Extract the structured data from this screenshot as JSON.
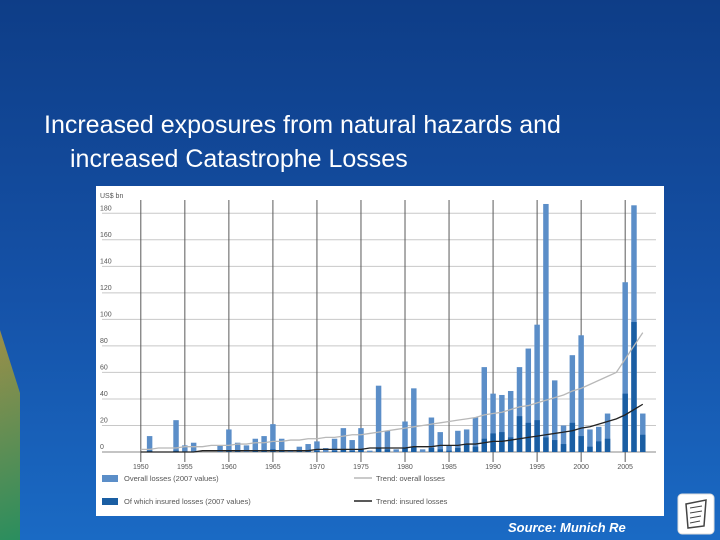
{
  "slide": {
    "title_line1": "Increased exposures from natural hazards and",
    "title_line2": "increased Catastrophe Losses",
    "source": "Source: Munich Re"
  },
  "chart_data": {
    "type": "bar",
    "ylabel": "US$ bn",
    "ylim": [
      0,
      190
    ],
    "yticks": [
      0,
      20,
      40,
      60,
      80,
      100,
      120,
      140,
      160,
      180
    ],
    "xticks": [
      "1950",
      "1955",
      "1960",
      "1965",
      "1970",
      "1975",
      "1980",
      "1985",
      "1990",
      "1995",
      "2000",
      "2005"
    ],
    "grid": true,
    "legend_position": "bottom",
    "colors": {
      "overall": "#5b8ec8",
      "insured": "#1a5ea3",
      "trend_overall": "#b8b8b8",
      "trend_insured": "#222222"
    },
    "years": [
      1950,
      1951,
      1952,
      1953,
      1954,
      1955,
      1956,
      1957,
      1958,
      1959,
      1960,
      1961,
      1962,
      1963,
      1964,
      1965,
      1966,
      1967,
      1968,
      1969,
      1970,
      1971,
      1972,
      1973,
      1974,
      1975,
      1976,
      1977,
      1978,
      1979,
      1980,
      1981,
      1982,
      1983,
      1984,
      1985,
      1986,
      1987,
      1988,
      1989,
      1990,
      1991,
      1992,
      1993,
      1994,
      1995,
      1996,
      1997,
      1998,
      1999,
      2000,
      2001,
      2002,
      2003,
      2004,
      2005,
      2006,
      2007
    ],
    "series": [
      {
        "name": "Overall losses (2007 values)",
        "values": [
          0,
          12,
          0,
          0,
          24,
          5,
          7,
          0,
          0,
          5,
          17,
          7,
          5,
          10,
          12,
          21,
          10,
          1,
          4,
          6,
          8,
          3,
          10,
          18,
          9,
          18,
          1,
          50,
          16,
          2,
          23,
          48,
          2,
          26,
          15,
          5,
          16,
          17,
          26,
          64,
          44,
          43,
          46,
          64,
          78,
          96,
          187,
          54,
          20,
          73,
          88,
          17,
          19,
          29,
          0,
          128,
          186,
          29
        ]
      },
      {
        "name": "Of which insured losses (2007 values)",
        "values": [
          0,
          1,
          0,
          0,
          1,
          0,
          0,
          0,
          0,
          0,
          1,
          1,
          0,
          1,
          1,
          2,
          1,
          0,
          1,
          1,
          1,
          0,
          1,
          2,
          1,
          2,
          0,
          3,
          2,
          0,
          3,
          4,
          0,
          3,
          2,
          1,
          3,
          6,
          4,
          10,
          14,
          15,
          11,
          27,
          22,
          24,
          11,
          9,
          6,
          22,
          12,
          4,
          8,
          10,
          0,
          44,
          98,
          13
        ]
      }
    ],
    "trends": [
      {
        "name": "Trend: overall losses",
        "values": [
          2,
          2,
          3,
          3,
          3,
          4,
          4,
          4,
          5,
          5,
          5,
          6,
          6,
          7,
          7,
          8,
          8,
          9,
          9,
          10,
          10,
          11,
          11,
          12,
          13,
          13,
          14,
          15,
          16,
          17,
          18,
          19,
          20,
          21,
          22,
          23,
          24,
          25,
          26,
          28,
          29,
          30,
          32,
          34,
          35,
          37,
          39,
          41,
          43,
          46,
          48,
          51,
          54,
          57,
          60,
          70,
          80,
          90
        ]
      },
      {
        "name": "Trend: insured losses",
        "values": [
          0,
          0,
          0,
          0,
          0,
          0,
          0,
          1,
          1,
          1,
          1,
          1,
          1,
          1,
          1,
          1,
          1,
          1,
          1,
          1,
          2,
          2,
          2,
          2,
          2,
          2,
          3,
          3,
          3,
          3,
          3,
          4,
          4,
          4,
          5,
          5,
          5,
          6,
          6,
          7,
          8,
          8,
          9,
          10,
          11,
          12,
          13,
          14,
          15,
          16,
          18,
          19,
          21,
          23,
          25,
          28,
          32,
          36
        ]
      }
    ]
  }
}
